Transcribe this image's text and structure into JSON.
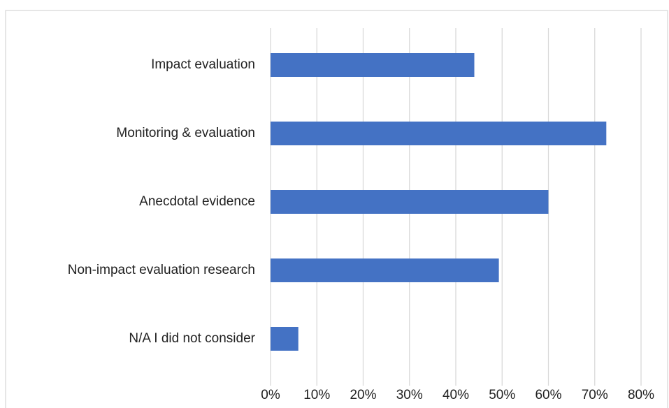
{
  "chart_data": {
    "type": "bar",
    "orientation": "horizontal",
    "categories": [
      "Impact evaluation",
      "Monitoring & evaluation",
      "Anecdotal evidence",
      "Non-impact evaluation research",
      "N/A I did not consider"
    ],
    "values": [
      44,
      72.5,
      60,
      49.3,
      6
    ],
    "color": "#4472c4",
    "xlim": [
      0,
      80
    ],
    "xticks": [
      {
        "value": 0,
        "label": "0%"
      },
      {
        "value": 10,
        "label": "10%"
      },
      {
        "value": 20,
        "label": "20%"
      },
      {
        "value": 30,
        "label": "30%"
      },
      {
        "value": 40,
        "label": "40%"
      },
      {
        "value": 50,
        "label": "50%"
      },
      {
        "value": 60,
        "label": "60%"
      },
      {
        "value": 70,
        "label": "70%"
      },
      {
        "value": 80,
        "label": "80%"
      }
    ],
    "grid": true
  }
}
